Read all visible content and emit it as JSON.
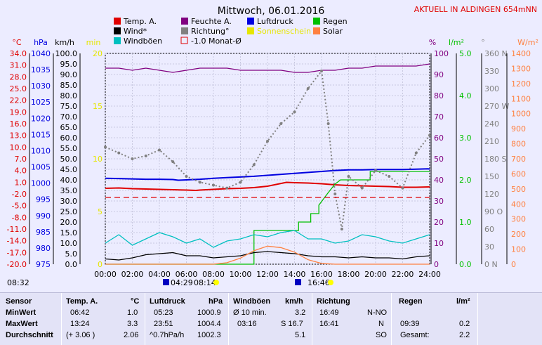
{
  "title": "Mittwoch, 06.01.2016",
  "location_label": "AKTUELL IN ALDINGEN 654mNN",
  "colors": {
    "temp": "#e00000",
    "humidity": "#800080",
    "pressure": "#0000e0",
    "rain": "#00c000",
    "wind": "#000000",
    "direction": "#808080",
    "sunshine": "#e6e600",
    "solar": "#ff8040",
    "gusts": "#00c0c0",
    "monthavg": "#e00000"
  },
  "legend": [
    {
      "label": "Temp. A.",
      "color": "#e00000",
      "swatch": "filled"
    },
    {
      "label": "Feuchte A.",
      "color": "#800080",
      "swatch": "filled"
    },
    {
      "label": "Luftdruck",
      "color": "#0000e0",
      "swatch": "filled"
    },
    {
      "label": "Regen",
      "color": "#00c000",
      "swatch": "filled"
    },
    {
      "label": "Wind*",
      "color": "#000000",
      "swatch": "filled"
    },
    {
      "label": "Richtung°",
      "color": "#808080",
      "swatch": "filled"
    },
    {
      "label": "Sonnenschein",
      "color": "#e6e600",
      "swatch": "filled"
    },
    {
      "label": "Solar",
      "color": "#ff8040",
      "swatch": "filled"
    },
    {
      "label": "Windböen",
      "color": "#00c0c0",
      "swatch": "filled"
    },
    {
      "label": "-1.0 Monat-Ø",
      "color": "#e00000",
      "swatch": "outline"
    }
  ],
  "axis_units": {
    "temp": "°C",
    "pressure": "hPa",
    "wind": "km/h",
    "sun": "min",
    "humidity": "%",
    "rain": "l/m²",
    "direction": "°",
    "solar": "W/m²"
  },
  "markers": {
    "left_time": "08:32",
    "sunrise": "04:29",
    "sunset": "08:14",
    "moon": "16:46"
  },
  "chart_data": {
    "type": "line",
    "title": "Mittwoch, 06.01.2016",
    "x_ticks": [
      "00:00",
      "02:00",
      "04:00",
      "06:00",
      "08:00",
      "10:00",
      "12:00",
      "14:00",
      "16:00",
      "18:00",
      "20:00",
      "22:00",
      "24:00"
    ],
    "x_range": [
      0,
      24
    ],
    "grid": true,
    "axes": {
      "temp": {
        "min": -20,
        "max": 40,
        "ticks": [
          "34.0",
          "31.0",
          "28.0",
          "25.0",
          "22.0",
          "19.0",
          "16.0",
          "13.0",
          "10.0",
          "7.0",
          "4.0",
          "1.0",
          "-2.0",
          "-5.0",
          "-8.0",
          "-11.0",
          "-14.0",
          "-17.0",
          "-20.0"
        ]
      },
      "pressure": {
        "min": 975,
        "max": 1040,
        "ticks": [
          "1040",
          "1035",
          "1030",
          "1025",
          "1020",
          "1015",
          "1010",
          "1005",
          "1000",
          "995",
          "990",
          "985",
          "980",
          "975"
        ]
      },
      "wind": {
        "min": 0,
        "max": 100,
        "ticks": [
          "100.0",
          "95.0",
          "90.0",
          "85.0",
          "80.0",
          "75.0",
          "70.0",
          "65.0",
          "60.0",
          "55.0",
          "50.0",
          "45.0",
          "40.0",
          "35.0",
          "30.0",
          "25.0",
          "20.0",
          "15.0",
          "10.0",
          "5.0",
          "0.0"
        ]
      },
      "sun": {
        "min": 0,
        "max": 20,
        "ticks": [
          "20",
          "15",
          "10",
          "5",
          "0"
        ]
      },
      "humidity": {
        "min": 0,
        "max": 100,
        "ticks": [
          "100",
          "90",
          "80",
          "70",
          "60",
          "50",
          "40",
          "30",
          "20",
          "10",
          "0"
        ]
      },
      "rain": {
        "min": 0,
        "max": 5,
        "ticks": [
          "5.0",
          "4.0",
          "3.0",
          "2.0",
          "1.0",
          "0.0"
        ]
      },
      "direction": {
        "min": 0,
        "max": 360,
        "ticks": [
          "360 N",
          "330",
          "300",
          "270 W",
          "240",
          "210",
          "180 S",
          "150",
          "120",
          "90 O",
          "60",
          "30",
          "0 N"
        ]
      },
      "solar": {
        "min": 0,
        "max": 1400,
        "ticks": [
          "1400",
          "1300",
          "1200",
          "1100",
          "1000",
          "900",
          "800",
          "700",
          "600",
          "500",
          "400",
          "300",
          "200",
          "100",
          "0"
        ]
      }
    },
    "series": [
      {
        "name": "Temp. A.",
        "axis": "temp",
        "x": [
          0,
          1,
          2,
          3,
          4,
          5,
          6,
          6.7,
          7,
          8,
          9,
          10,
          11,
          12,
          13.4,
          14,
          15,
          16,
          17,
          18,
          19,
          20,
          21,
          22,
          23,
          24
        ],
        "y": [
          1.6,
          1.7,
          1.5,
          1.4,
          1.3,
          1.2,
          1.1,
          1.0,
          1.1,
          1.3,
          1.5,
          1.6,
          1.8,
          2.2,
          3.3,
          3.2,
          3.1,
          2.9,
          2.6,
          2.4,
          2.3,
          2.2,
          2.1,
          1.9,
          1.9,
          2.0
        ]
      },
      {
        "name": "Feuchte A.",
        "axis": "humidity",
        "x": [
          0,
          1,
          2,
          3,
          4,
          5,
          6,
          7,
          8,
          9,
          10,
          11,
          12,
          13,
          14,
          15,
          16,
          17,
          18,
          19,
          20,
          21,
          22,
          23,
          24
        ],
        "y": [
          93,
          93,
          92,
          93,
          92,
          91,
          92,
          93,
          93,
          93,
          92,
          92,
          92,
          92,
          91,
          91,
          92,
          92,
          93,
          93,
          94,
          94,
          94,
          94,
          95
        ]
      },
      {
        "name": "Luftdruck",
        "axis": "pressure",
        "x": [
          0,
          1,
          2,
          3,
          4,
          5,
          5.4,
          6,
          7,
          8,
          9,
          10,
          11,
          12,
          13,
          14,
          15,
          16,
          17,
          18,
          19,
          20,
          21,
          22,
          23,
          23.9,
          24
        ],
        "y": [
          1001.5,
          1001.4,
          1001.3,
          1001.2,
          1001.2,
          1001.1,
          1000.9,
          1001.0,
          1001.2,
          1001.5,
          1001.7,
          1001.9,
          1002.1,
          1002.4,
          1002.7,
          1003.0,
          1003.3,
          1003.6,
          1003.9,
          1004.1,
          1004.1,
          1004.2,
          1004.2,
          1004.2,
          1004.3,
          1004.4,
          1004.3
        ]
      },
      {
        "name": "Regen",
        "axis": "rain",
        "x": [
          0,
          11,
          11,
          14.3,
          14.3,
          15.2,
          15.2,
          15.8,
          15.8,
          16.5,
          17.0,
          17.4,
          17.4,
          19.6,
          19.6,
          24
        ],
        "y": [
          0,
          0,
          0.8,
          0.8,
          1.0,
          1.0,
          1.2,
          1.2,
          1.4,
          1.7,
          1.9,
          2.0,
          2.0,
          2.0,
          2.2,
          2.2
        ]
      },
      {
        "name": "Wind*",
        "axis": "wind",
        "x": [
          0,
          1,
          2,
          3,
          4,
          5,
          6,
          7,
          8,
          9,
          10,
          11,
          12,
          13,
          14,
          15,
          16,
          17,
          18,
          19,
          20,
          21,
          22,
          23,
          24
        ],
        "y": [
          2.5,
          2.0,
          3.0,
          4.5,
          5.0,
          5.5,
          4.0,
          4.0,
          3.0,
          3.5,
          4.0,
          5.5,
          6.0,
          5.5,
          5.0,
          4.0,
          3.5,
          3.5,
          3.0,
          3.5,
          3.0,
          3.0,
          2.5,
          3.5,
          4.0
        ]
      },
      {
        "name": "Windböen",
        "axis": "wind",
        "x": [
          0,
          1,
          2,
          3,
          4,
          5,
          6,
          7,
          8,
          9,
          10,
          11,
          12,
          13,
          14,
          15,
          16,
          17,
          18,
          19,
          20,
          21,
          22,
          23,
          24
        ],
        "y": [
          10,
          14,
          9,
          12,
          15,
          13,
          10,
          12,
          8,
          11,
          12,
          14,
          13,
          15,
          16,
          12,
          12,
          10,
          11,
          14,
          13,
          11,
          10,
          12,
          14
        ]
      },
      {
        "name": "Richtung°",
        "axis": "direction",
        "x": [
          0,
          1,
          2,
          3,
          4,
          5,
          6,
          7,
          8,
          9,
          10,
          11,
          12,
          13,
          14,
          15,
          16,
          16.5,
          17,
          17.5,
          18,
          19,
          20,
          21,
          22,
          23,
          24
        ],
        "y": [
          200,
          190,
          180,
          185,
          195,
          175,
          150,
          140,
          135,
          130,
          140,
          170,
          210,
          240,
          260,
          300,
          330,
          240,
          120,
          60,
          150,
          130,
          160,
          150,
          130,
          190,
          220
        ]
      },
      {
        "name": "Solar",
        "axis": "solar",
        "x": [
          0,
          8,
          9,
          10,
          11,
          12,
          13,
          14,
          15,
          16,
          17,
          24
        ],
        "y": [
          0,
          0,
          10,
          40,
          90,
          120,
          110,
          80,
          30,
          5,
          0,
          0
        ]
      },
      {
        "name": "-1.0 Monat-Ø",
        "axis": "temp",
        "x": [
          0,
          24
        ],
        "y": [
          -1.0,
          -1.0
        ]
      }
    ]
  },
  "table": {
    "sensor": {
      "header": "Sensor",
      "rows": [
        "MinWert",
        "MaxWert",
        "Durchschnitt"
      ]
    },
    "temp": {
      "header": "Temp. A.",
      "unit": "°C",
      "rows": [
        [
          "06:42",
          "1.0"
        ],
        [
          "13:24",
          "3.3"
        ],
        [
          "(+ 3.06 )",
          "2.06"
        ]
      ]
    },
    "pressure": {
      "header": "Luftdruck",
      "unit": "hPa",
      "rows": [
        [
          "05:23",
          "1000.9"
        ],
        [
          "23:51",
          "1004.4"
        ],
        [
          "^0.7hPa/h",
          "1002.3"
        ]
      ]
    },
    "gusts": {
      "header": "Windböen",
      "unit": "km/h",
      "rows": [
        [
          "Ø 10 min.",
          "3.2"
        ],
        [
          "03:16",
          "S 16.7"
        ],
        [
          "",
          "5.1"
        ]
      ]
    },
    "direction": {
      "header": "Richtung",
      "unit": "",
      "rows": [
        [
          "16:49",
          "N-NO"
        ],
        [
          "16:41",
          "N"
        ],
        [
          "",
          "SO"
        ]
      ]
    },
    "rain": {
      "header": "Regen",
      "unit": "l/m²",
      "rows": [
        [
          "",
          ""
        ],
        [
          "09:39",
          "0.2"
        ],
        [
          "Gesamt:",
          "2.2"
        ]
      ]
    }
  }
}
